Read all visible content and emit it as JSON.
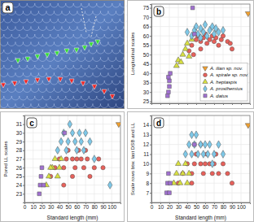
{
  "image_panel": {
    "label": "a"
  },
  "chart_data": [
    {
      "type": "scatter",
      "title": "b",
      "y_label": "Longitudinal scales",
      "xlim": [
        0,
        110
      ],
      "xticks": [
        0,
        10,
        20,
        30,
        40,
        50,
        60,
        70,
        80,
        90,
        100
      ],
      "ylim": [
        24,
        77
      ],
      "yticks": [
        25,
        30,
        35,
        40,
        45,
        50,
        55,
        60,
        65,
        70,
        75
      ],
      "grid": true,
      "tick_labels": "y",
      "legend": "lower right",
      "series": [
        {
          "name": "A. ilian sp. nov.",
          "color": "#f0a030",
          "marker": "triangle-down",
          "x": [
            108
          ],
          "values": [
            72
          ]
        },
        {
          "name": "A. spirale sp. nov.",
          "color": "#e8605a",
          "marker": "circle",
          "x": [
            45,
            50,
            52,
            55,
            58,
            60,
            62,
            65,
            68,
            70,
            72,
            75,
            78,
            80,
            85,
            88,
            90,
            42,
            47,
            55
          ],
          "values": [
            55,
            58,
            60,
            57,
            59,
            61,
            56,
            58,
            60,
            57,
            59,
            55,
            58,
            60,
            57,
            56,
            53,
            52,
            50,
            53
          ]
        },
        {
          "name": "A. heptaspis",
          "color": "#d8e040",
          "marker": "triangle",
          "x": [
            28,
            30,
            35,
            38,
            40,
            42,
            45,
            33
          ],
          "values": [
            44,
            47,
            50,
            53,
            56,
            49,
            58,
            46
          ]
        },
        {
          "name": "A. prosthemius",
          "color": "#7ec8e8",
          "marker": "diamond",
          "x": [
            40,
            45,
            48,
            50,
            52,
            55,
            58,
            60,
            62,
            65,
            68,
            70,
            72,
            75,
            80,
            55
          ],
          "values": [
            62,
            60,
            63,
            65,
            61,
            64,
            62,
            66,
            60,
            63,
            65,
            61,
            64,
            62,
            63,
            59
          ]
        },
        {
          "name": "A. datus",
          "color": "#a070d0",
          "marker": "square",
          "x": [
            18,
            19,
            20,
            20,
            19,
            21,
            46,
            48
          ],
          "values": [
            28,
            30,
            33,
            36,
            38,
            40,
            75,
            61
          ]
        }
      ]
    },
    {
      "type": "scatter",
      "title": "c",
      "y_label": "Pored LL scales",
      "x_label": "Standard length (mm)",
      "xlim": [
        0,
        110
      ],
      "xticks": [
        0,
        10,
        20,
        30,
        40,
        50,
        60,
        70,
        80,
        90,
        100
      ],
      "ylim": [
        22,
        32
      ],
      "yticks": [
        23,
        24,
        25,
        26,
        27,
        28,
        29,
        30,
        31
      ],
      "grid": true,
      "series": [
        {
          "color": "#f0a030",
          "marker": "triangle-down",
          "x": [
            108
          ],
          "values": [
            31
          ]
        },
        {
          "color": "#e8605a",
          "marker": "circle",
          "x": [
            30,
            35,
            40,
            45,
            48,
            50,
            55,
            58,
            60,
            62,
            65,
            68,
            70,
            72,
            75,
            80,
            85,
            90,
            55,
            45
          ],
          "values": [
            25,
            26,
            27,
            26,
            27,
            28,
            27,
            26,
            27,
            28,
            27,
            26,
            28,
            27,
            25,
            26,
            27,
            26,
            25,
            24
          ]
        },
        {
          "color": "#d8e040",
          "marker": "triangle",
          "x": [
            25,
            28,
            32,
            35,
            38,
            40,
            42,
            30
          ],
          "values": [
            24,
            25,
            26,
            27,
            25,
            26,
            27,
            26
          ]
        },
        {
          "color": "#7ec8e8",
          "marker": "diamond",
          "x": [
            38,
            42,
            45,
            48,
            50,
            52,
            55,
            58,
            60,
            63,
            65,
            68,
            70,
            75,
            80,
            98
          ],
          "values": [
            28,
            29,
            30,
            28,
            29,
            31,
            30,
            29,
            28,
            30,
            29,
            28,
            30,
            29,
            27,
            24
          ]
        },
        {
          "color": "#a070d0",
          "marker": "square",
          "x": [
            17,
            18,
            19,
            20,
            22,
            46
          ],
          "values": [
            23,
            24,
            25,
            26,
            24,
            30
          ]
        }
      ]
    },
    {
      "type": "scatter",
      "title": "d",
      "y_label": "Scale rows btw. last DSB and LL",
      "x_label": "Standard length (mm)",
      "xlim": [
        0,
        110
      ],
      "xticks": [
        0,
        10,
        20,
        30,
        40,
        50,
        60,
        70,
        80,
        90,
        100
      ],
      "ylim": [
        6,
        15
      ],
      "yticks": [
        7,
        8,
        9,
        10,
        11,
        12,
        13,
        14
      ],
      "grid": true,
      "series": [
        {
          "color": "#f0a030",
          "marker": "triangle-down",
          "x": [
            108
          ],
          "values": [
            14
          ]
        },
        {
          "color": "#e8605a",
          "marker": "circle",
          "x": [
            30,
            35,
            40,
            45,
            48,
            50,
            55,
            58,
            60,
            62,
            65,
            68,
            70,
            72,
            75,
            80,
            85,
            90,
            55,
            45
          ],
          "values": [
            8,
            9,
            10,
            9,
            10,
            11,
            10,
            9,
            10,
            11,
            10,
            9,
            10,
            11,
            9,
            10,
            9,
            8,
            12,
            8
          ]
        },
        {
          "color": "#d8e040",
          "marker": "triangle",
          "x": [
            25,
            28,
            32,
            35,
            38,
            40,
            42,
            30
          ],
          "values": [
            8,
            9,
            8,
            9,
            10,
            8,
            9,
            10
          ]
        },
        {
          "color": "#7ec8e8",
          "marker": "diamond",
          "x": [
            38,
            42,
            45,
            48,
            50,
            52,
            55,
            58,
            60,
            63,
            65,
            68,
            70,
            75,
            80,
            45
          ],
          "values": [
            11,
            12,
            11,
            12,
            13,
            11,
            12,
            11,
            12,
            11,
            12,
            10,
            11,
            12,
            11,
            13
          ]
        },
        {
          "color": "#a070d0",
          "marker": "square",
          "x": [
            17,
            18,
            19,
            20,
            21,
            48
          ],
          "values": [
            7,
            8,
            9,
            7,
            8,
            12
          ]
        }
      ]
    }
  ]
}
